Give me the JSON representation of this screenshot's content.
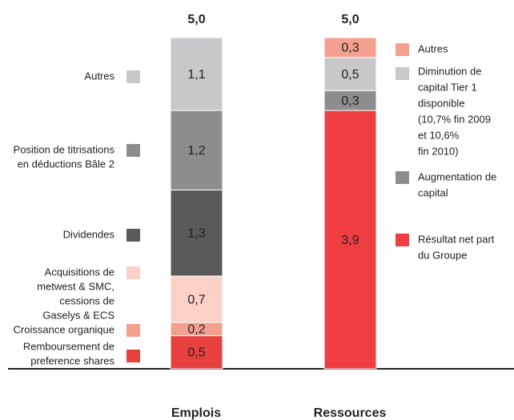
{
  "chart_data": {
    "type": "stacked-bar",
    "stacks": [
      {
        "name": "Emplois",
        "total": 5.0,
        "total_label": "5,0",
        "segments": [
          {
            "label": [
              "Remboursement de",
              "preference shares"
            ],
            "color": "#e8403f",
            "value": 0.5,
            "value_label": "0,5"
          },
          {
            "label": [
              "Croissance organique"
            ],
            "color": "#f4a08f",
            "value": 0.2,
            "value_label": "0,2"
          },
          {
            "label": [
              "Acquisitions de",
              "metwest & SMC,",
              "cessions de",
              "Gaselys & ECS"
            ],
            "color": "#fbd0c6",
            "value": 0.7,
            "value_label": "0,7"
          },
          {
            "label": [
              "Dividendes"
            ],
            "color": "#5a5a5a",
            "value": 1.3,
            "value_label": "1,3"
          },
          {
            "label": [
              "Position de titrisations",
              "en déductions Bâle 2"
            ],
            "color": "#8d8d8f",
            "value": 1.2,
            "value_label": "1,2"
          },
          {
            "label": [
              "Autres"
            ],
            "color": "#c8c8ca",
            "value": 1.1,
            "value_label": "1,1"
          }
        ]
      },
      {
        "name": "Ressources",
        "total": 5.0,
        "total_label": "5,0",
        "segments": [
          {
            "label": [
              "Résultat net part",
              "du Groupe"
            ],
            "color": "#ee3e42",
            "value": 3.9,
            "value_label": "3,9"
          },
          {
            "label": [
              "Augmentation de",
              "capital"
            ],
            "color": "#8d8d8f",
            "value": 0.3,
            "value_label": "0,3"
          },
          {
            "label": [
              "Diminution de",
              "capital Tier 1",
              "disponible",
              "(10,7% fin 2009",
              "et  10,6%",
              "fin 2010)"
            ],
            "color": "#c8c8ca",
            "value": 0.5,
            "value_label": "0,5"
          },
          {
            "label": [
              "Autres"
            ],
            "color": "#f4a08f",
            "value": 0.3,
            "value_label": "0,3"
          }
        ]
      }
    ]
  }
}
